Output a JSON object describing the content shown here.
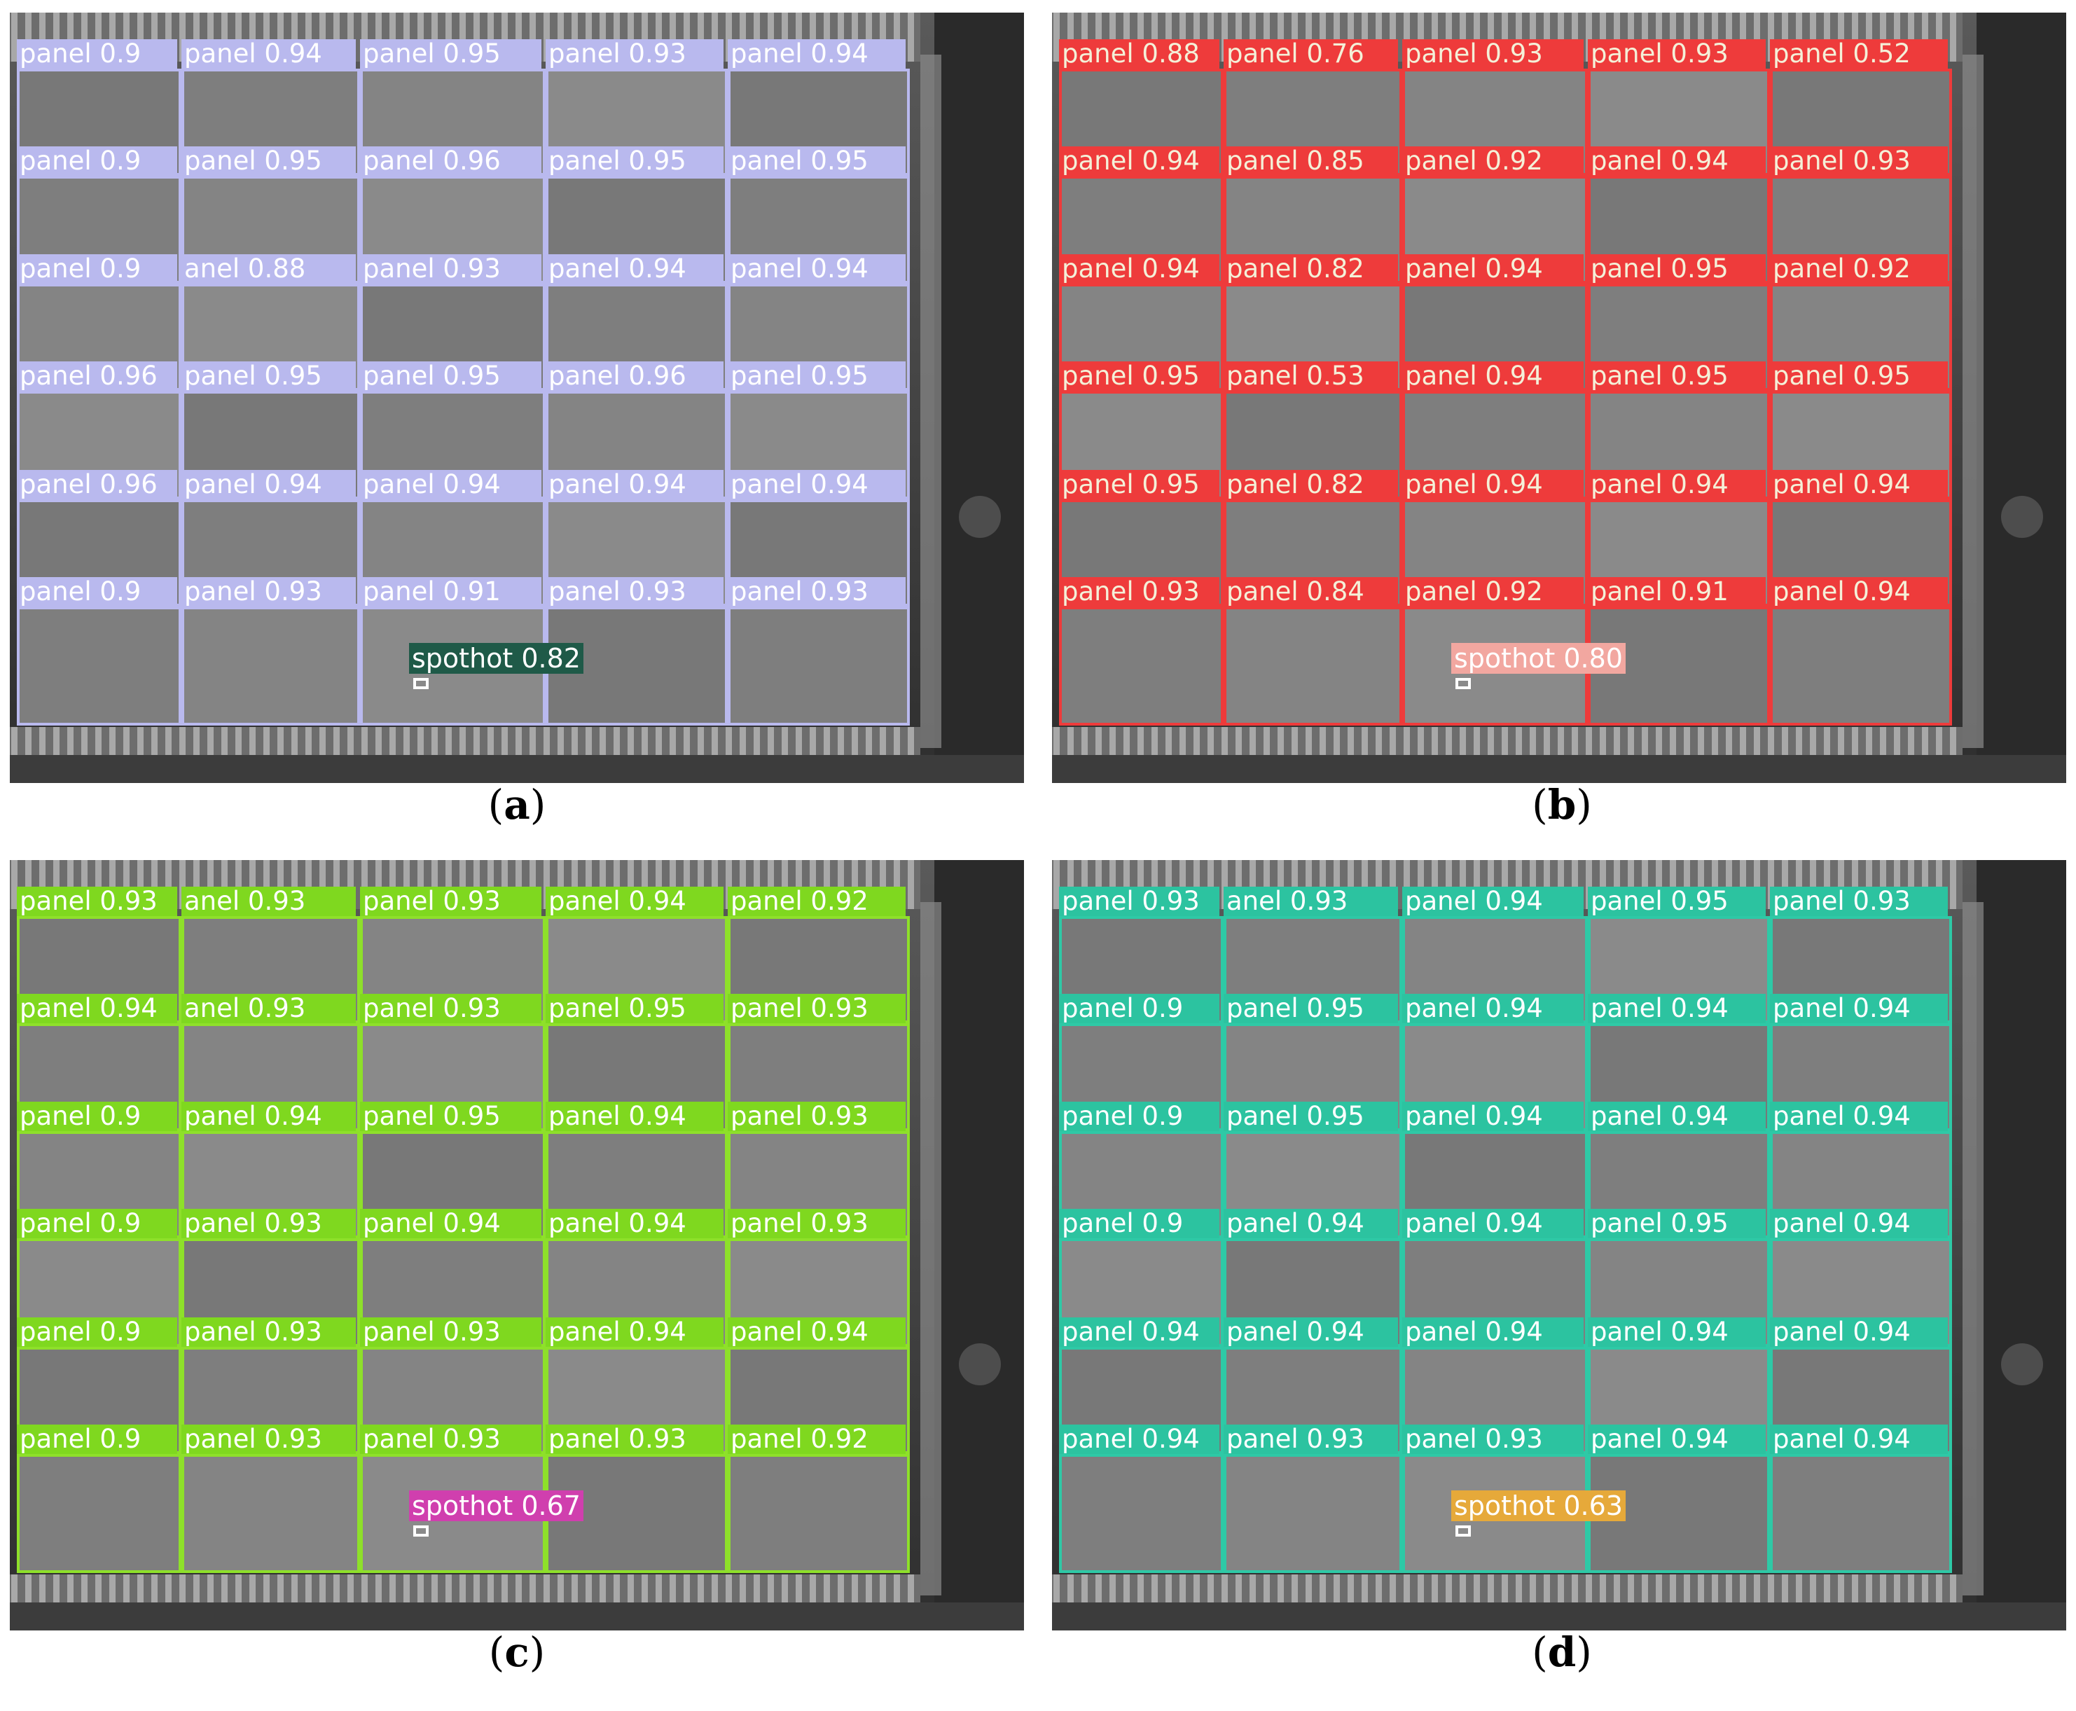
{
  "panels": [
    {
      "caption_letter": "a",
      "box_color": "#b9b9ee",
      "label_color": "#b9b9ee",
      "label_text_color": "#ffffff",
      "rows": [
        [
          "panel 0.9",
          "panel 0.94",
          "panel 0.95",
          "panel 0.93",
          "panel 0.94"
        ],
        [
          "panel 0.9",
          "panel 0.95",
          "panel 0.96",
          "panel 0.95",
          "panel 0.95"
        ],
        [
          "panel 0.9",
          "anel 0.88",
          "panel 0.93",
          "panel 0.94",
          "panel 0.94"
        ],
        [
          "panel 0.96",
          "panel 0.95",
          "panel 0.95",
          "panel 0.96",
          "panel 0.95"
        ],
        [
          "panel 0.96",
          "panel 0.94",
          "panel 0.94",
          "panel 0.94",
          "panel 0.94"
        ],
        [
          "panel 0.9",
          "panel 0.93",
          "panel 0.91",
          "panel 0.93",
          "panel 0.93"
        ]
      ],
      "spot": {
        "text": "spothot 0.82",
        "bg": "#1f5a48",
        "color": "#ffffff"
      }
    },
    {
      "caption_letter": "b",
      "box_color": "#ee3b3b",
      "label_color": "#ee3b3b",
      "label_text_color": "#f4f0d8",
      "rows": [
        [
          "panel 0.88",
          "panel 0.76",
          "panel 0.93",
          "panel 0.93",
          "panel 0.52"
        ],
        [
          "panel 0.94",
          "panel 0.85",
          "panel 0.92",
          "panel 0.94",
          "panel 0.93"
        ],
        [
          "panel 0.94",
          "panel 0.82",
          "panel 0.94",
          "panel 0.95",
          "panel 0.92"
        ],
        [
          "panel 0.95",
          "panel 0.53",
          "panel 0.94",
          "panel 0.95",
          "panel 0.95"
        ],
        [
          "panel 0.95",
          "panel 0.82",
          "panel 0.94",
          "panel 0.94",
          "panel 0.94"
        ],
        [
          "panel 0.93",
          "panel 0.84",
          "panel 0.92",
          "panel 0.91",
          "panel 0.94"
        ]
      ],
      "spot": {
        "text": "spothot 0.80",
        "bg": "#f2a7a0",
        "color": "#ffffff"
      }
    },
    {
      "caption_letter": "c",
      "box_color": "#8ee02a",
      "label_color": "#7fd81f",
      "label_text_color": "#ffffff",
      "rows": [
        [
          "panel 0.93",
          "anel 0.93",
          "panel 0.93",
          "panel 0.94",
          "panel 0.92"
        ],
        [
          "panel 0.94",
          "anel 0.93",
          "panel 0.93",
          "panel 0.95",
          "panel 0.93"
        ],
        [
          "panel 0.9",
          "panel 0.94",
          "panel 0.95",
          "panel 0.94",
          "panel 0.93"
        ],
        [
          "panel 0.9",
          "panel 0.93",
          "panel 0.94",
          "panel 0.94",
          "panel 0.93"
        ],
        [
          "panel 0.9",
          "panel 0.93",
          "panel 0.93",
          "panel 0.94",
          "panel 0.94"
        ],
        [
          "panel 0.9",
          "panel 0.93",
          "panel 0.93",
          "panel 0.93",
          "panel 0.92"
        ]
      ],
      "spot": {
        "text": "spothot 0.67",
        "bg": "#d03fae",
        "color": "#ffffff"
      }
    },
    {
      "caption_letter": "d",
      "box_color": "#2ec9a6",
      "label_color": "#2cc3a0",
      "label_text_color": "#ffffff",
      "rows": [
        [
          "panel 0.93",
          "anel 0.93",
          "panel 0.94",
          "panel 0.95",
          "panel 0.93"
        ],
        [
          "panel 0.9",
          "panel 0.95",
          "panel 0.94",
          "panel 0.94",
          "panel 0.94"
        ],
        [
          "panel 0.9",
          "panel 0.95",
          "panel 0.94",
          "panel 0.94",
          "panel 0.94"
        ],
        [
          "panel 0.9",
          "panel 0.94",
          "panel 0.94",
          "panel 0.95",
          "panel 0.94"
        ],
        [
          "panel 0.94",
          "panel 0.94",
          "panel 0.94",
          "panel 0.94",
          "panel 0.94"
        ],
        [
          "panel 0.94",
          "panel 0.93",
          "panel 0.93",
          "panel 0.94",
          "panel 0.94"
        ]
      ],
      "spot": {
        "text": "spothot 0.63",
        "bg": "#e6a93a",
        "color": "#ffffff"
      }
    }
  ]
}
